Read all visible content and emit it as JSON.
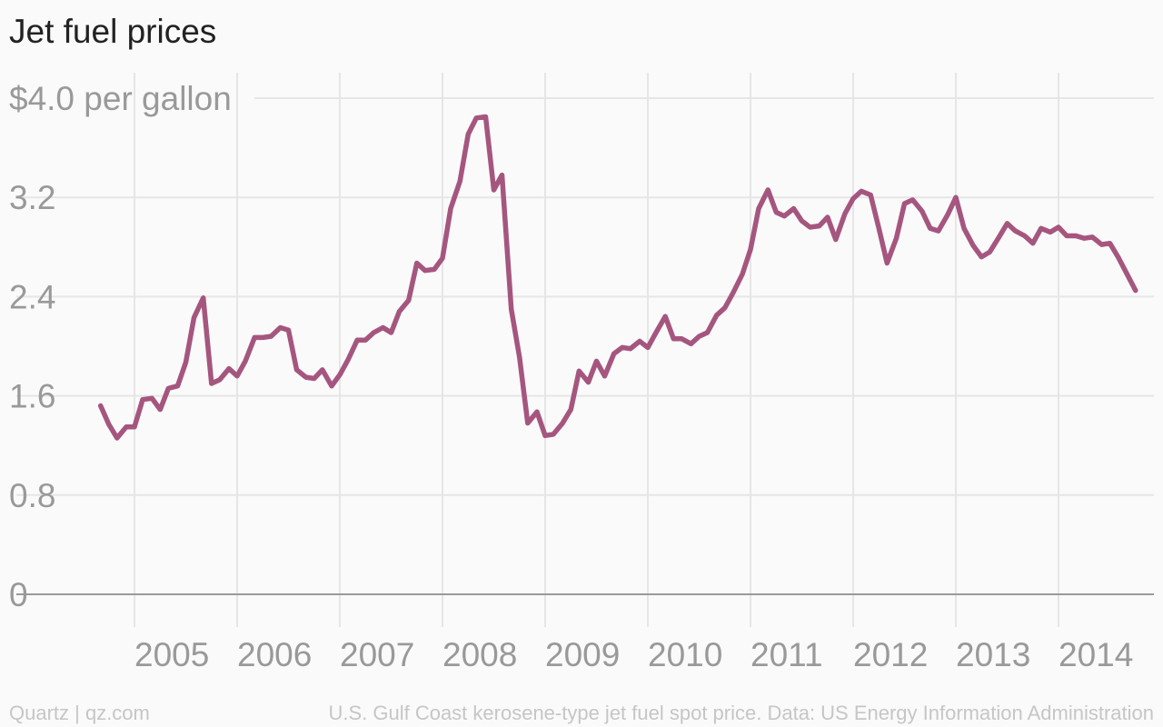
{
  "chart_data": {
    "type": "line",
    "title": "Jet fuel prices",
    "ylabel": "$4.0 per gallon",
    "ylim": [
      0,
      4.0
    ],
    "yticks": [
      {
        "value": 0,
        "label": "0"
      },
      {
        "value": 0.8,
        "label": "0.8"
      },
      {
        "value": 1.6,
        "label": "1.6"
      },
      {
        "value": 2.4,
        "label": "2.4"
      },
      {
        "value": 3.2,
        "label": "3.2"
      },
      {
        "value": 4.0,
        "label": "$4.0 per gallon"
      }
    ],
    "xlim": [
      2004.0,
      2015.0
    ],
    "xticks": [
      {
        "value": 2005,
        "label": "2005"
      },
      {
        "value": 2006,
        "label": "2006"
      },
      {
        "value": 2007,
        "label": "2007"
      },
      {
        "value": 2008,
        "label": "2008"
      },
      {
        "value": 2009,
        "label": "2009"
      },
      {
        "value": 2010,
        "label": "2010"
      },
      {
        "value": 2011,
        "label": "2011"
      },
      {
        "value": 2012,
        "label": "2012"
      },
      {
        "value": 2013,
        "label": "2013"
      },
      {
        "value": 2014,
        "label": "2014"
      }
    ],
    "grid": true,
    "line_color": "#a5567f",
    "series": [
      {
        "x": [
          2004.67,
          2004.75,
          2004.83,
          2004.92,
          2005.0,
          2005.08,
          2005.17,
          2005.25,
          2005.33,
          2005.42,
          2005.5,
          2005.58,
          2005.67,
          2005.75,
          2005.83,
          2005.92,
          2006.0,
          2006.08,
          2006.17,
          2006.25,
          2006.33,
          2006.42,
          2006.5,
          2006.58,
          2006.67,
          2006.75,
          2006.83,
          2006.92,
          2007.0,
          2007.08,
          2007.17,
          2007.25,
          2007.33,
          2007.42,
          2007.5,
          2007.58,
          2007.67,
          2007.75,
          2007.83,
          2007.92,
          2008.0,
          2008.08,
          2008.17,
          2008.25,
          2008.33,
          2008.42,
          2008.5,
          2008.58,
          2008.67,
          2008.75,
          2008.83,
          2008.92,
          2009.0,
          2009.08,
          2009.17,
          2009.25,
          2009.33,
          2009.42,
          2009.5,
          2009.58,
          2009.67,
          2009.75,
          2009.83,
          2009.92,
          2010.0,
          2010.08,
          2010.17,
          2010.25,
          2010.33,
          2010.42,
          2010.5,
          2010.58,
          2010.67,
          2010.75,
          2010.83,
          2010.92,
          2011.0,
          2011.08,
          2011.17,
          2011.25,
          2011.33,
          2011.42,
          2011.5,
          2011.58,
          2011.67,
          2011.75,
          2011.83,
          2011.92,
          2012.0,
          2012.08,
          2012.17,
          2012.25,
          2012.33,
          2012.42,
          2012.5,
          2012.58,
          2012.67,
          2012.75,
          2012.83,
          2012.92,
          2013.0,
          2013.08,
          2013.17,
          2013.25,
          2013.33,
          2013.42,
          2013.5,
          2013.58,
          2013.67,
          2013.75,
          2013.83,
          2013.92,
          2014.0,
          2014.08,
          2014.17,
          2014.25,
          2014.33,
          2014.42,
          2014.5,
          2014.58,
          2014.75
        ],
        "y": [
          1.52,
          1.37,
          1.26,
          1.35,
          1.35,
          1.57,
          1.58,
          1.49,
          1.66,
          1.68,
          1.87,
          2.23,
          2.39,
          1.7,
          1.73,
          1.82,
          1.76,
          1.88,
          2.07,
          2.07,
          2.08,
          2.15,
          2.13,
          1.81,
          1.75,
          1.74,
          1.81,
          1.68,
          1.77,
          1.89,
          2.05,
          2.05,
          2.11,
          2.15,
          2.11,
          2.28,
          2.37,
          2.67,
          2.61,
          2.62,
          2.71,
          3.11,
          3.33,
          3.71,
          3.84,
          3.85,
          3.26,
          3.38,
          2.3,
          1.91,
          1.38,
          1.47,
          1.28,
          1.29,
          1.38,
          1.49,
          1.8,
          1.71,
          1.88,
          1.76,
          1.94,
          1.99,
          1.98,
          2.04,
          1.99,
          2.11,
          2.24,
          2.06,
          2.06,
          2.02,
          2.08,
          2.11,
          2.25,
          2.31,
          2.43,
          2.58,
          2.78,
          3.11,
          3.26,
          3.08,
          3.05,
          3.11,
          3.01,
          2.96,
          2.97,
          3.04,
          2.86,
          3.07,
          3.19,
          3.25,
          3.22,
          2.95,
          2.67,
          2.87,
          3.15,
          3.18,
          3.09,
          2.95,
          2.93,
          3.06,
          3.2,
          2.95,
          2.81,
          2.72,
          2.76,
          2.88,
          2.99,
          2.93,
          2.89,
          2.83,
          2.95,
          2.92,
          2.96,
          2.89,
          2.89,
          2.87,
          2.88,
          2.82,
          2.83,
          2.72,
          2.45
        ]
      }
    ]
  },
  "footer": {
    "left": "Quartz | qz.com",
    "right": "U.S. Gulf Coast kerosene-type jet fuel spot price. Data: US Energy Information Administration"
  },
  "colors": {
    "line": "#a5567f",
    "grid": "#e6e6e6",
    "axis": "#999999",
    "tick_label": "#999999"
  }
}
